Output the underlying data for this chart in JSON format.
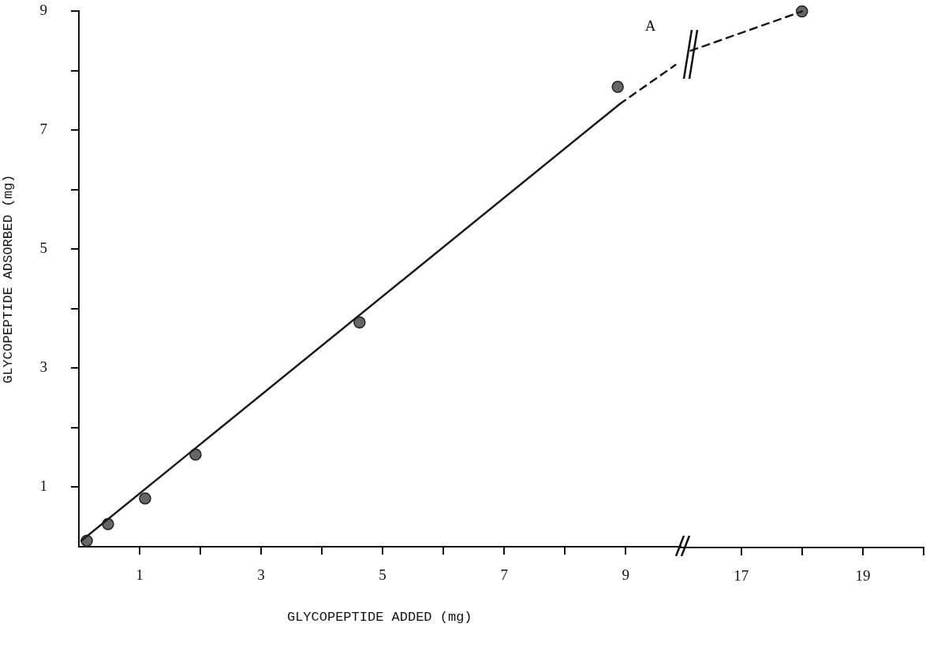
{
  "chart_data": [
    {
      "type": "line",
      "xlabel": "GLYCOPEPTIDE ADDED (mg)",
      "ylabel": "GLYCOPEPTIDE ADSORBED (mg)",
      "annotations": [
        "A"
      ],
      "xlim": [
        0,
        9.9
      ],
      "xticks": [
        1,
        {
          "value": 2,
          "label": null
        },
        3,
        {
          "value": 4,
          "label": null
        },
        5,
        {
          "value": 6,
          "label": null
        },
        7,
        {
          "value": 8,
          "label": null
        },
        9
      ],
      "ylim": [
        0,
        9
      ],
      "yticks": [
        1,
        {
          "value": 2,
          "label": null
        },
        3,
        {
          "value": 4,
          "label": null
        },
        5,
        {
          "value": 6,
          "label": null
        },
        7,
        {
          "value": 8,
          "label": null
        },
        9
      ],
      "grid": false,
      "legend": false,
      "series": [
        {
          "type": "line",
          "x": [
            0.04,
            8.9
          ],
          "values": [
            0.1,
            7.44
          ],
          "color": "#1a1a1a",
          "line_style": "solid",
          "marker": "none"
        },
        {
          "type": "line",
          "x": [
            8.9,
            9.82
          ],
          "values": [
            7.44,
            8.1
          ],
          "color": "#1a1a1a",
          "line_style": "dashed",
          "marker": "none"
        },
        {
          "type": "scatter",
          "x": [
            0.13,
            0.48,
            1.09,
            1.92,
            4.62,
            8.87
          ],
          "values": [
            0.1,
            0.38,
            0.81,
            1.55,
            3.77,
            7.73
          ],
          "color": "#666666",
          "marker": "circle"
        }
      ]
    },
    {
      "type": "line",
      "xlim": [
        16,
        20
      ],
      "xticks": [
        17,
        {
          "value": 18,
          "label": null
        },
        19,
        {
          "value": 20,
          "label": null
        }
      ],
      "ylim": [
        0,
        9
      ],
      "tick_labels": "x",
      "grid": false,
      "legend": false,
      "series": [
        {
          "type": "line",
          "x": [
            16.17,
            18
          ],
          "values": [
            8.34,
            9
          ],
          "color": "#1a1a1a",
          "line_style": "dashed",
          "marker": "none"
        },
        {
          "type": "scatter",
          "x": [
            18
          ],
          "values": [
            9
          ],
          "color": "#666666",
          "marker": "circle"
        }
      ]
    }
  ]
}
